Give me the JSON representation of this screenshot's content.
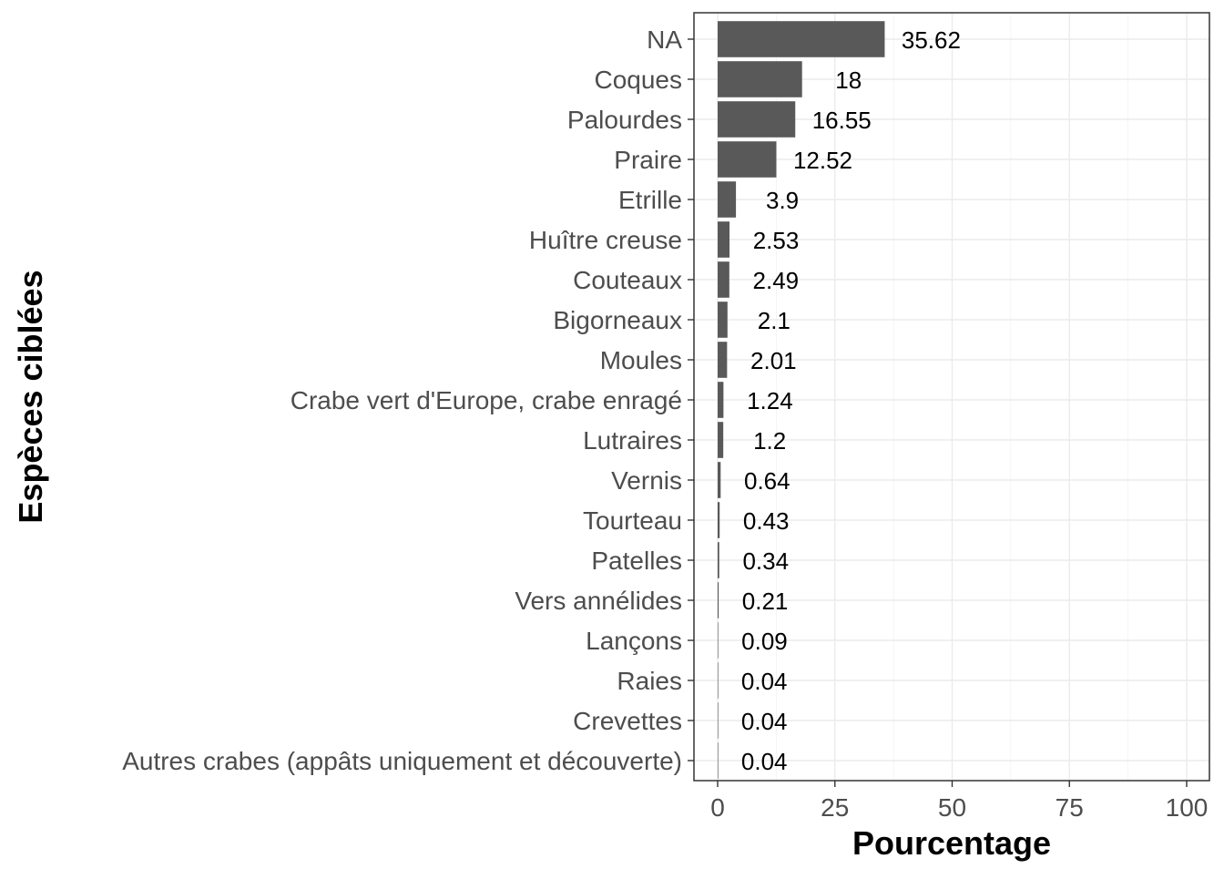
{
  "chart_data": {
    "type": "bar",
    "orientation": "horizontal",
    "xlabel": "Pourcentage",
    "ylabel": "Espèces ciblées",
    "xlim": [
      0,
      100
    ],
    "x_ticks": [
      0,
      25,
      50,
      75,
      100
    ],
    "grid": true,
    "bar_color": "#595959",
    "categories": [
      "NA",
      "Coques",
      "Palourdes",
      "Praire",
      "Etrille",
      "Huître creuse",
      "Couteaux",
      "Bigorneaux",
      "Moules",
      "Crabe vert d'Europe, crabe enragé",
      "Lutraires",
      "Vernis",
      "Tourteau",
      "Patelles",
      "Vers annélides",
      "Lançons",
      "Raies",
      "Crevettes",
      "Autres crabes (appâts uniquement et découverte)"
    ],
    "values": [
      35.62,
      18,
      16.55,
      12.52,
      3.9,
      2.53,
      2.49,
      2.1,
      2.01,
      1.24,
      1.2,
      0.64,
      0.43,
      0.34,
      0.21,
      0.09,
      0.04,
      0.04,
      0.04
    ],
    "value_labels": [
      "35.62",
      "18",
      "16.55",
      "12.52",
      "3.9",
      "2.53",
      "2.49",
      "2.1",
      "2.01",
      "1.24",
      "1.2",
      "0.64",
      "0.43",
      "0.34",
      "0.21",
      "0.09",
      "0.04",
      "0.04",
      "0.04"
    ]
  }
}
